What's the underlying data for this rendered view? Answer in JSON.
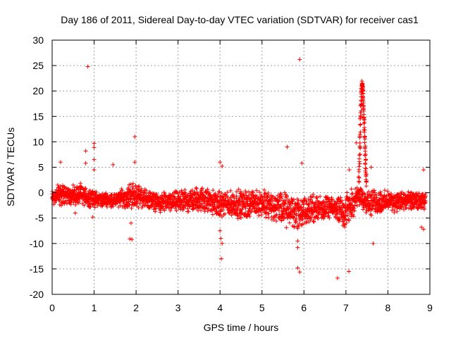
{
  "chart_data": {
    "type": "scatter",
    "title": "Day 186 of 2011, Sidereal Day-to-day VTEC variation (SDTVAR) for receiver cas1",
    "xlabel": "GPS time / hours",
    "ylabel": "SDTVAR / TECUs",
    "xlim": [
      0,
      9
    ],
    "ylim": [
      -20,
      30
    ],
    "xticks": [
      0,
      1,
      2,
      3,
      4,
      5,
      6,
      7,
      8,
      9
    ],
    "yticks": [
      -20,
      -15,
      -10,
      -5,
      0,
      5,
      10,
      15,
      20,
      25,
      30
    ],
    "grid": true,
    "marker": "+",
    "series": [
      {
        "name": "SDTVAR",
        "color": "#ff0000",
        "band": [
          {
            "x": 0.0,
            "lo": -3.0,
            "hi": 1.0
          },
          {
            "x": 0.2,
            "lo": -3.0,
            "hi": 2.5
          },
          {
            "x": 0.4,
            "lo": -2.5,
            "hi": 1.5
          },
          {
            "x": 0.7,
            "lo": -3.0,
            "hi": 2.0
          },
          {
            "x": 1.0,
            "lo": -3.0,
            "hi": 0.5
          },
          {
            "x": 1.5,
            "lo": -3.0,
            "hi": 0.0
          },
          {
            "x": 1.9,
            "lo": -3.5,
            "hi": 2.5
          },
          {
            "x": 2.2,
            "lo": -3.0,
            "hi": 1.0
          },
          {
            "x": 2.5,
            "lo": -4.0,
            "hi": 0.0
          },
          {
            "x": 3.0,
            "lo": -4.0,
            "hi": 0.5
          },
          {
            "x": 3.5,
            "lo": -4.0,
            "hi": 1.5
          },
          {
            "x": 4.0,
            "lo": -5.0,
            "hi": 0.5
          },
          {
            "x": 4.5,
            "lo": -5.5,
            "hi": 1.0
          },
          {
            "x": 5.0,
            "lo": -5.0,
            "hi": 1.0
          },
          {
            "x": 5.5,
            "lo": -7.0,
            "hi": 0.5
          },
          {
            "x": 5.9,
            "lo": -8.0,
            "hi": 0.0
          },
          {
            "x": 6.3,
            "lo": -6.0,
            "hi": 0.0
          },
          {
            "x": 6.7,
            "lo": -5.0,
            "hi": -1.0
          },
          {
            "x": 7.0,
            "lo": -7.5,
            "hi": 0.5
          },
          {
            "x": 7.3,
            "lo": -3.0,
            "hi": 1.5
          },
          {
            "x": 7.6,
            "lo": -5.0,
            "hi": 1.0
          },
          {
            "x": 8.0,
            "lo": -4.0,
            "hi": 0.5
          },
          {
            "x": 8.5,
            "lo": -4.0,
            "hi": 0.5
          },
          {
            "x": 8.9,
            "lo": -3.5,
            "hi": 0.0
          }
        ],
        "spike": [
          {
            "x": 7.3,
            "y": 0
          },
          {
            "x": 7.33,
            "y": 8
          },
          {
            "x": 7.35,
            "y": 15
          },
          {
            "x": 7.37,
            "y": 20
          },
          {
            "x": 7.39,
            "y": 21.5
          },
          {
            "x": 7.41,
            "y": 19
          },
          {
            "x": 7.43,
            "y": 15
          },
          {
            "x": 7.45,
            "y": 10
          },
          {
            "x": 7.47,
            "y": 5
          },
          {
            "x": 7.49,
            "y": 1
          }
        ],
        "outliers": [
          {
            "x": 0.85,
            "y": 24.8
          },
          {
            "x": 5.9,
            "y": 26.2
          },
          {
            "x": 5.6,
            "y": 9.0
          },
          {
            "x": 1.97,
            "y": 11.0
          },
          {
            "x": 1.0,
            "y": 9.7
          },
          {
            "x": 1.0,
            "y": 8.9
          },
          {
            "x": 0.8,
            "y": 8.2
          },
          {
            "x": 0.2,
            "y": 6.0
          },
          {
            "x": 0.8,
            "y": 5.8
          },
          {
            "x": 1.0,
            "y": 6.5
          },
          {
            "x": 1.0,
            "y": 4.5
          },
          {
            "x": 1.45,
            "y": 5.5
          },
          {
            "x": 1.97,
            "y": 6.0
          },
          {
            "x": 4.0,
            "y": 6.0
          },
          {
            "x": 4.05,
            "y": 5.2
          },
          {
            "x": 5.95,
            "y": 5.8
          },
          {
            "x": 7.08,
            "y": 4.5
          },
          {
            "x": 7.25,
            "y": 9.8
          },
          {
            "x": 7.6,
            "y": 5.0
          },
          {
            "x": 8.85,
            "y": 4.5
          },
          {
            "x": 0.55,
            "y": -4.0
          },
          {
            "x": 0.97,
            "y": -4.8
          },
          {
            "x": 1.88,
            "y": -6.0
          },
          {
            "x": 1.85,
            "y": -9.1
          },
          {
            "x": 1.9,
            "y": -9.2
          },
          {
            "x": 4.0,
            "y": -7.5
          },
          {
            "x": 4.02,
            "y": -9.0
          },
          {
            "x": 4.05,
            "y": -10.0
          },
          {
            "x": 4.03,
            "y": -13.0
          },
          {
            "x": 5.85,
            "y": -9.5
          },
          {
            "x": 5.85,
            "y": -10.8
          },
          {
            "x": 5.85,
            "y": -14.8
          },
          {
            "x": 5.9,
            "y": -15.6
          },
          {
            "x": 6.8,
            "y": -16.8
          },
          {
            "x": 7.07,
            "y": -15.5
          },
          {
            "x": 7.65,
            "y": -10.0
          },
          {
            "x": 8.8,
            "y": -6.8
          },
          {
            "x": 8.85,
            "y": -7.2
          }
        ]
      }
    ]
  }
}
